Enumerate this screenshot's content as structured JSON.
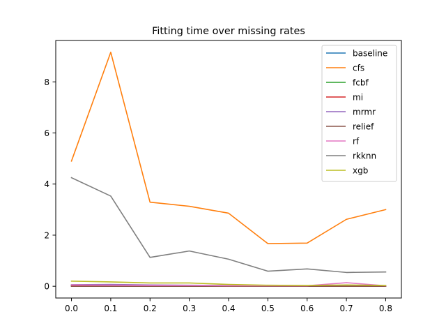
{
  "chart_data": {
    "type": "line",
    "title": "Fitting time over missing rates",
    "xlabel": "",
    "ylabel": "",
    "x": [
      0.0,
      0.1,
      0.2,
      0.3,
      0.4,
      0.5,
      0.6,
      0.7,
      0.8
    ],
    "x_ticks": [
      "0.0",
      "0.1",
      "0.2",
      "0.3",
      "0.4",
      "0.5",
      "0.6",
      "0.7",
      "0.8"
    ],
    "y_ticks": [
      0,
      2,
      4,
      6,
      8
    ],
    "y_tick_labels": [
      "0",
      "2",
      "4",
      "6",
      "8"
    ],
    "xlim": [
      -0.04,
      0.84
    ],
    "ylim": [
      -0.46,
      9.62
    ],
    "grid": false,
    "legend_position": "top-right",
    "series": [
      {
        "name": "baseline",
        "color": "#1f77b4",
        "values": [
          0.01,
          0.01,
          0.01,
          0.01,
          0.01,
          0.01,
          0.01,
          0.01,
          0.01
        ]
      },
      {
        "name": "cfs",
        "color": "#ff7f0e",
        "values": [
          4.9,
          9.16,
          3.29,
          3.13,
          2.86,
          1.67,
          1.69,
          2.62,
          3.0
        ]
      },
      {
        "name": "fcbf",
        "color": "#2ca02c",
        "values": [
          0.02,
          0.02,
          0.02,
          0.02,
          0.02,
          0.01,
          0.01,
          0.01,
          0.01
        ]
      },
      {
        "name": "mi",
        "color": "#d62728",
        "values": [
          0.03,
          0.03,
          0.02,
          0.02,
          0.02,
          0.01,
          0.01,
          0.01,
          0.01
        ]
      },
      {
        "name": "mrmr",
        "color": "#9467bd",
        "values": [
          0.06,
          0.07,
          0.05,
          0.04,
          0.03,
          0.02,
          0.02,
          0.02,
          0.01
        ]
      },
      {
        "name": "relief",
        "color": "#8c564b",
        "values": [
          0.0,
          0.0,
          0.0,
          0.0,
          0.0,
          0.0,
          0.0,
          0.0,
          0.0
        ]
      },
      {
        "name": "rf",
        "color": "#e377c2",
        "values": [
          0.05,
          0.04,
          0.03,
          0.03,
          0.02,
          0.02,
          0.02,
          0.14,
          0.02
        ]
      },
      {
        "name": "rkknn",
        "color": "#7f7f7f",
        "values": [
          4.25,
          3.53,
          1.13,
          1.38,
          1.06,
          0.59,
          0.68,
          0.54,
          0.56
        ]
      },
      {
        "name": "xgb",
        "color": "#bcbd22",
        "values": [
          0.2,
          0.17,
          0.13,
          0.13,
          0.07,
          0.04,
          0.03,
          0.05,
          0.03
        ]
      }
    ]
  }
}
